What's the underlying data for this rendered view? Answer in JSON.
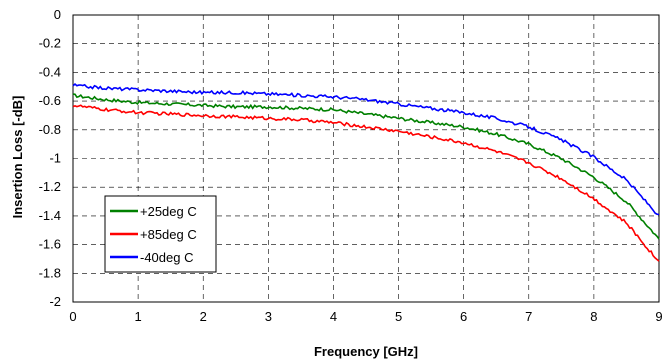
{
  "chart_data": {
    "type": "line",
    "xlabel": "Frequency [GHz]",
    "ylabel": "Insertion Loss [-dB]",
    "xlim": [
      0,
      9
    ],
    "ylim": [
      -2,
      0
    ],
    "x_ticks": [
      "0",
      "1",
      "2",
      "3",
      "4",
      "5",
      "6",
      "7",
      "8",
      "9"
    ],
    "y_ticks": [
      "0",
      "-0.2",
      "-0.4",
      "-0.6",
      "-0.8",
      "-1",
      "-1.2",
      "-1.4",
      "-1.6",
      "-1.8",
      "-2"
    ],
    "grid": true,
    "legend_position": "bottom-left",
    "x": [
      0,
      0.5,
      1,
      1.5,
      2,
      2.5,
      3,
      3.5,
      4,
      4.5,
      5,
      5.5,
      6,
      6.5,
      7,
      7.5,
      8,
      8.5,
      9
    ],
    "series": [
      {
        "name": "+25deg C",
        "color": "#008000",
        "values": [
          -0.56,
          -0.59,
          -0.61,
          -0.62,
          -0.63,
          -0.64,
          -0.64,
          -0.65,
          -0.66,
          -0.69,
          -0.72,
          -0.75,
          -0.78,
          -0.83,
          -0.9,
          -1.0,
          -1.13,
          -1.3,
          -1.56
        ]
      },
      {
        "name": "+85deg C",
        "color": "#ff0000",
        "values": [
          -0.63,
          -0.66,
          -0.68,
          -0.69,
          -0.7,
          -0.71,
          -0.72,
          -0.73,
          -0.75,
          -0.78,
          -0.81,
          -0.85,
          -0.89,
          -0.95,
          -1.03,
          -1.14,
          -1.28,
          -1.45,
          -1.72
        ]
      },
      {
        "name": "-40deg C",
        "color": "#0000ff",
        "values": [
          -0.49,
          -0.51,
          -0.52,
          -0.53,
          -0.54,
          -0.54,
          -0.55,
          -0.56,
          -0.57,
          -0.59,
          -0.62,
          -0.65,
          -0.68,
          -0.72,
          -0.78,
          -0.87,
          -0.99,
          -1.15,
          -1.4
        ]
      }
    ]
  }
}
